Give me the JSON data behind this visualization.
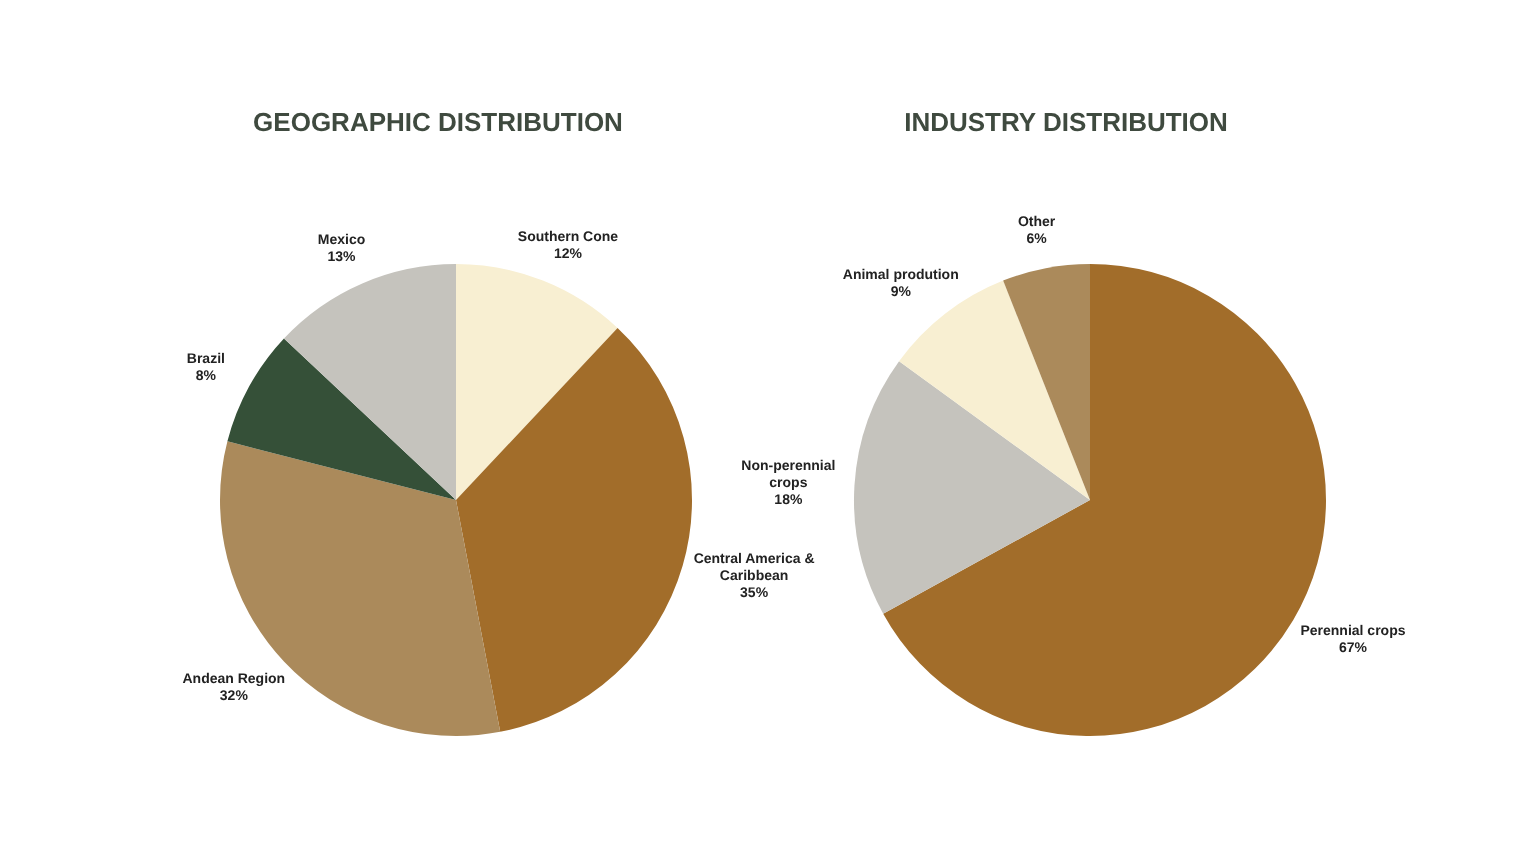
{
  "chart_data": [
    {
      "type": "pie",
      "title": "GEOGRAPHIC DISTRIBUTION",
      "categories": [
        "Southern Cone",
        "Central America & Caribbean",
        "Andean Region",
        "Brazil",
        "Mexico"
      ],
      "values": [
        12,
        35,
        32,
        8,
        13
      ],
      "colors": [
        "#f8efd2",
        "#a26d2a",
        "#ab8a5b",
        "#355038",
        "#c5c3bd"
      ],
      "value_labels": [
        "12%",
        "35%",
        "32%",
        "8%",
        "13%"
      ],
      "legend": false
    },
    {
      "type": "pie",
      "title": "INDUSTRY DISTRIBUTION",
      "categories": [
        "Perennial crops",
        "Non-perennial crops",
        "Animal prodution",
        "Other"
      ],
      "values": [
        67,
        18,
        9,
        6
      ],
      "colors": [
        "#a26d2a",
        "#c5c3bd",
        "#f8efd2",
        "#ab8a5b"
      ],
      "value_labels": [
        "67%",
        "18%",
        "9%",
        "6%"
      ],
      "legend": false
    }
  ]
}
